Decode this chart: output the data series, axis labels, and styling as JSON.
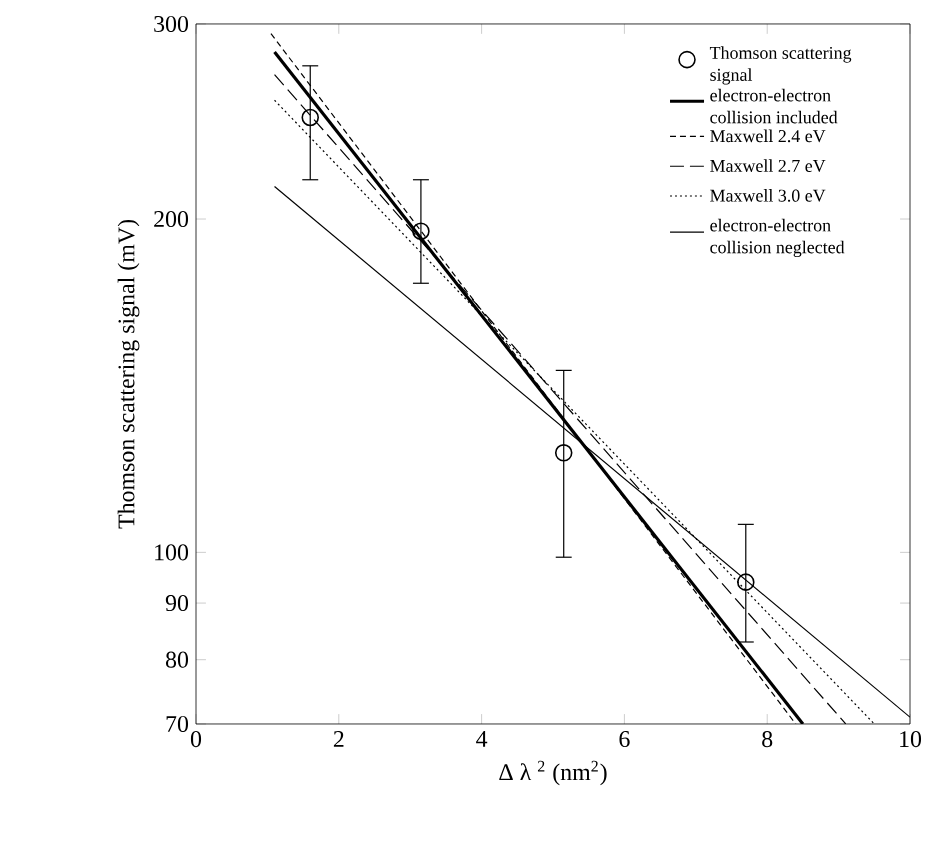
{
  "chart_data": {
    "type": "line",
    "xlabel": "Δ λ $^{2}$   (nm$^{2}$)",
    "ylabel": "Thomson scattering signal (mV)",
    "log": "y",
    "xlim": [
      0,
      10
    ],
    "ylim": [
      70,
      300
    ],
    "xticks": [
      0,
      2,
      4,
      6,
      8,
      10
    ],
    "yticks": [
      70,
      80,
      90,
      100,
      200,
      300
    ],
    "legend": "top right",
    "grid": false,
    "series": [
      {
        "name": "Thomson scattering signal",
        "type": "scatter",
        "marker": "circle",
        "color": "#000000",
        "x": [
          1.6,
          3.15,
          5.15,
          7.7
        ],
        "values": [
          247,
          195,
          123,
          94
        ],
        "errors": [
          [
            217,
            275
          ],
          [
            175,
            217
          ],
          [
            99,
            146
          ],
          [
            83,
            106
          ]
        ]
      },
      {
        "name": "electron-electron collision included",
        "color": "#000000",
        "line_style": "solid",
        "x": [
          1.1,
          8.5
        ],
        "values": [
          283,
          70
        ]
      },
      {
        "name": "Maxwell 2.4 eV",
        "color": "#000000",
        "line_style": "dashed",
        "x": [
          1.05,
          8.4
        ],
        "values": [
          294,
          70
        ]
      },
      {
        "name": "Maxwell 2.7 eV",
        "color": "#000000",
        "line_style": "longdashed",
        "x": [
          1.1,
          9.1
        ],
        "values": [
          270,
          70
        ]
      },
      {
        "name": "Maxwell 3.0 eV",
        "color": "#000000",
        "line_style": "dotted",
        "x": [
          1.1,
          9.5
        ],
        "values": [
          256,
          70
        ]
      },
      {
        "name": "electron-electron collision neglected",
        "color": "#000000",
        "line_style": "solid",
        "x": [
          1.1,
          10
        ],
        "values": [
          214,
          71
        ]
      }
    ]
  }
}
